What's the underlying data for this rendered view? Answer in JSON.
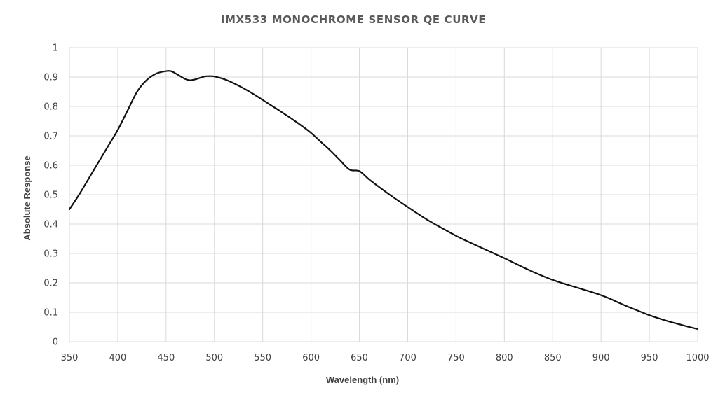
{
  "chart_data": {
    "type": "line",
    "title": "IMX533 MONOCHROME SENSOR QE CURVE",
    "xlabel": "Wavelength (nm)",
    "ylabel": "Absolute Response",
    "xlim": [
      350,
      1000
    ],
    "ylim": [
      0,
      1
    ],
    "x_ticks": [
      350,
      400,
      450,
      500,
      550,
      600,
      650,
      700,
      750,
      800,
      850,
      900,
      950,
      1000
    ],
    "y_ticks": [
      0,
      0.1,
      0.2,
      0.3,
      0.4,
      0.5,
      0.6,
      0.7,
      0.8,
      0.9,
      1
    ],
    "grid": true,
    "legend": "none",
    "series": [
      {
        "color": "#111111",
        "points": [
          [
            350,
            0.45
          ],
          [
            360,
            0.5
          ],
          [
            370,
            0.555
          ],
          [
            380,
            0.61
          ],
          [
            390,
            0.665
          ],
          [
            400,
            0.72
          ],
          [
            410,
            0.785
          ],
          [
            420,
            0.85
          ],
          [
            430,
            0.89
          ],
          [
            440,
            0.912
          ],
          [
            450,
            0.92
          ],
          [
            455,
            0.92
          ],
          [
            460,
            0.912
          ],
          [
            470,
            0.893
          ],
          [
            475,
            0.889
          ],
          [
            480,
            0.892
          ],
          [
            490,
            0.902
          ],
          [
            495,
            0.903
          ],
          [
            500,
            0.902
          ],
          [
            510,
            0.893
          ],
          [
            520,
            0.879
          ],
          [
            530,
            0.862
          ],
          [
            540,
            0.843
          ],
          [
            550,
            0.822
          ],
          [
            560,
            0.801
          ],
          [
            570,
            0.78
          ],
          [
            580,
            0.758
          ],
          [
            590,
            0.735
          ],
          [
            600,
            0.71
          ],
          [
            610,
            0.68
          ],
          [
            620,
            0.65
          ],
          [
            630,
            0.617
          ],
          [
            640,
            0.585
          ],
          [
            650,
            0.58
          ],
          [
            660,
            0.552
          ],
          [
            670,
            0.527
          ],
          [
            680,
            0.503
          ],
          [
            690,
            0.48
          ],
          [
            700,
            0.458
          ],
          [
            710,
            0.436
          ],
          [
            720,
            0.415
          ],
          [
            730,
            0.396
          ],
          [
            740,
            0.378
          ],
          [
            750,
            0.36
          ],
          [
            760,
            0.344
          ],
          [
            770,
            0.329
          ],
          [
            780,
            0.314
          ],
          [
            790,
            0.299
          ],
          [
            800,
            0.284
          ],
          [
            810,
            0.268
          ],
          [
            820,
            0.252
          ],
          [
            830,
            0.237
          ],
          [
            840,
            0.223
          ],
          [
            850,
            0.21
          ],
          [
            860,
            0.199
          ],
          [
            870,
            0.189
          ],
          [
            880,
            0.179
          ],
          [
            890,
            0.169
          ],
          [
            900,
            0.158
          ],
          [
            910,
            0.145
          ],
          [
            920,
            0.13
          ],
          [
            930,
            0.116
          ],
          [
            940,
            0.103
          ],
          [
            950,
            0.09
          ],
          [
            960,
            0.079
          ],
          [
            970,
            0.069
          ],
          [
            980,
            0.06
          ],
          [
            990,
            0.051
          ],
          [
            1000,
            0.043
          ]
        ]
      }
    ]
  }
}
